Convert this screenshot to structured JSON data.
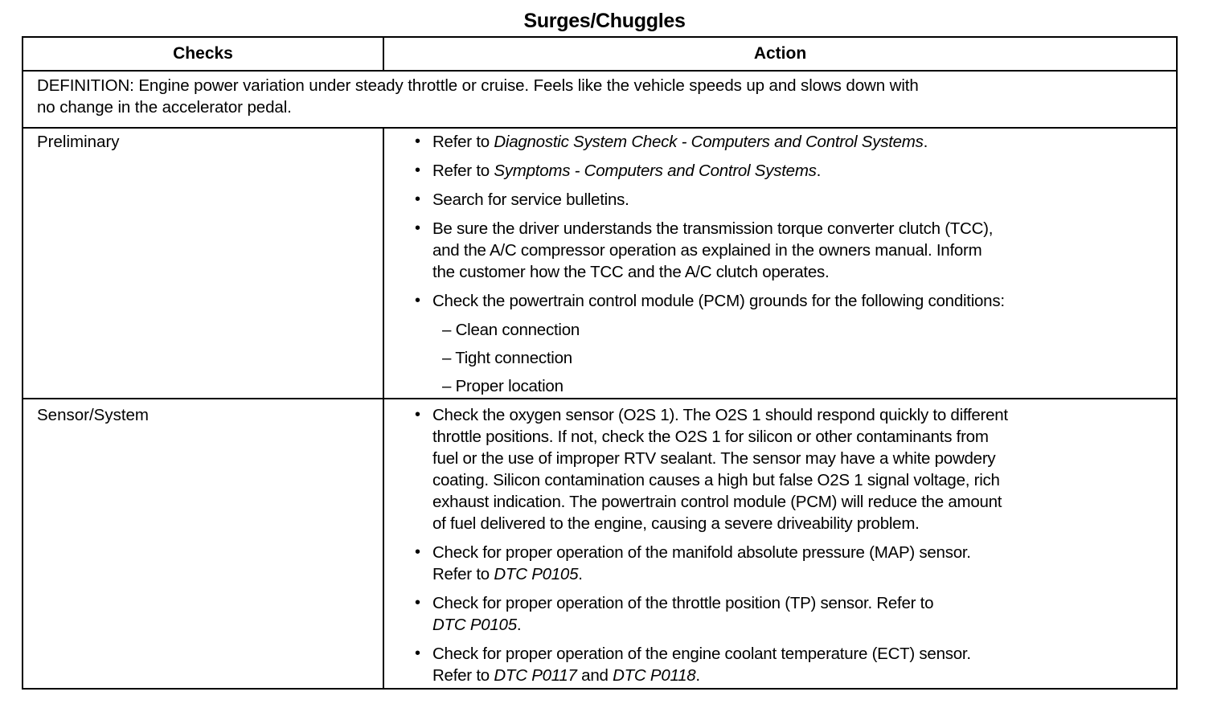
{
  "title": "Surges/Chuggles",
  "table": {
    "headers": [
      "Checks",
      "Action"
    ],
    "definition": [
      "DEFINITION: Engine power variation under steady throttle or cruise. Feels like the vehicle speeds up and slows down with",
      "no change in the accelerator pedal."
    ],
    "rows": [
      {
        "check": "Preliminary",
        "actions": [
          {
            "type": "bullet",
            "lines": [
              [
                {
                  "t": "Refer to "
                },
                {
                  "t": "Diagnostic System Check - Computers and Control Systems",
                  "i": true
                },
                {
                  "t": "."
                }
              ]
            ]
          },
          {
            "type": "bullet",
            "lines": [
              [
                {
                  "t": "Refer to "
                },
                {
                  "t": "Symptoms - Computers and Control Systems",
                  "i": true
                },
                {
                  "t": "."
                }
              ]
            ]
          },
          {
            "type": "bullet",
            "lines": [
              [
                {
                  "t": "Search for service bulletins."
                }
              ]
            ]
          },
          {
            "type": "bullet",
            "lines": [
              [
                {
                  "t": "Be sure the driver understands the transmission torque converter clutch (TCC),"
                }
              ],
              [
                {
                  "t": "and the A/C compressor operation as explained in the owners manual. Inform"
                }
              ],
              [
                {
                  "t": "the customer how the TCC and the A/C clutch operates."
                }
              ]
            ]
          },
          {
            "type": "bullet",
            "lines": [
              [
                {
                  "t": "Check the powertrain control module (PCM) grounds for the following conditions:"
                }
              ]
            ]
          },
          {
            "type": "sub",
            "lines": [
              [
                {
                  "t": "– Clean connection"
                }
              ]
            ]
          },
          {
            "type": "sub",
            "lines": [
              [
                {
                  "t": "– Tight connection"
                }
              ]
            ]
          },
          {
            "type": "sub",
            "lines": [
              [
                {
                  "t": "– Proper location"
                }
              ]
            ]
          }
        ]
      },
      {
        "check": "Sensor/System",
        "actions": [
          {
            "type": "bullet",
            "lines": [
              [
                {
                  "t": "Check the oxygen sensor (O2S 1). The O2S 1 should respond quickly to different"
                }
              ],
              [
                {
                  "t": "throttle positions. If not, check the O2S 1 for silicon or other contaminants from"
                }
              ],
              [
                {
                  "t": "fuel or the use of improper RTV sealant. The sensor may have a white powdery"
                }
              ],
              [
                {
                  "t": "coating. Silicon contamination causes a high but false O2S 1 signal voltage, rich"
                }
              ],
              [
                {
                  "t": "exhaust indication. The powertrain control module (PCM) will reduce the amount"
                }
              ],
              [
                {
                  "t": "of fuel delivered to the engine, causing a severe driveability problem."
                }
              ]
            ]
          },
          {
            "type": "bullet",
            "lines": [
              [
                {
                  "t": "Check for proper operation of the manifold absolute pressure (MAP) sensor."
                }
              ],
              [
                {
                  "t": "Refer to "
                },
                {
                  "t": "DTC P0105",
                  "i": true
                },
                {
                  "t": "."
                }
              ]
            ]
          },
          {
            "type": "bullet",
            "lines": [
              [
                {
                  "t": "Check for proper operation of the throttle position (TP) sensor. Refer to"
                }
              ],
              [
                {
                  "t": "DTC P0105",
                  "i": true
                },
                {
                  "t": "."
                }
              ]
            ]
          },
          {
            "type": "bullet",
            "lines": [
              [
                {
                  "t": "Check for proper operation of the engine coolant temperature (ECT) sensor."
                }
              ],
              [
                {
                  "t": "Refer to "
                },
                {
                  "t": "DTC P0117",
                  "i": true
                },
                {
                  "t": " and "
                },
                {
                  "t": "DTC P0118",
                  "i": true
                },
                {
                  "t": "."
                }
              ]
            ]
          }
        ]
      }
    ]
  }
}
